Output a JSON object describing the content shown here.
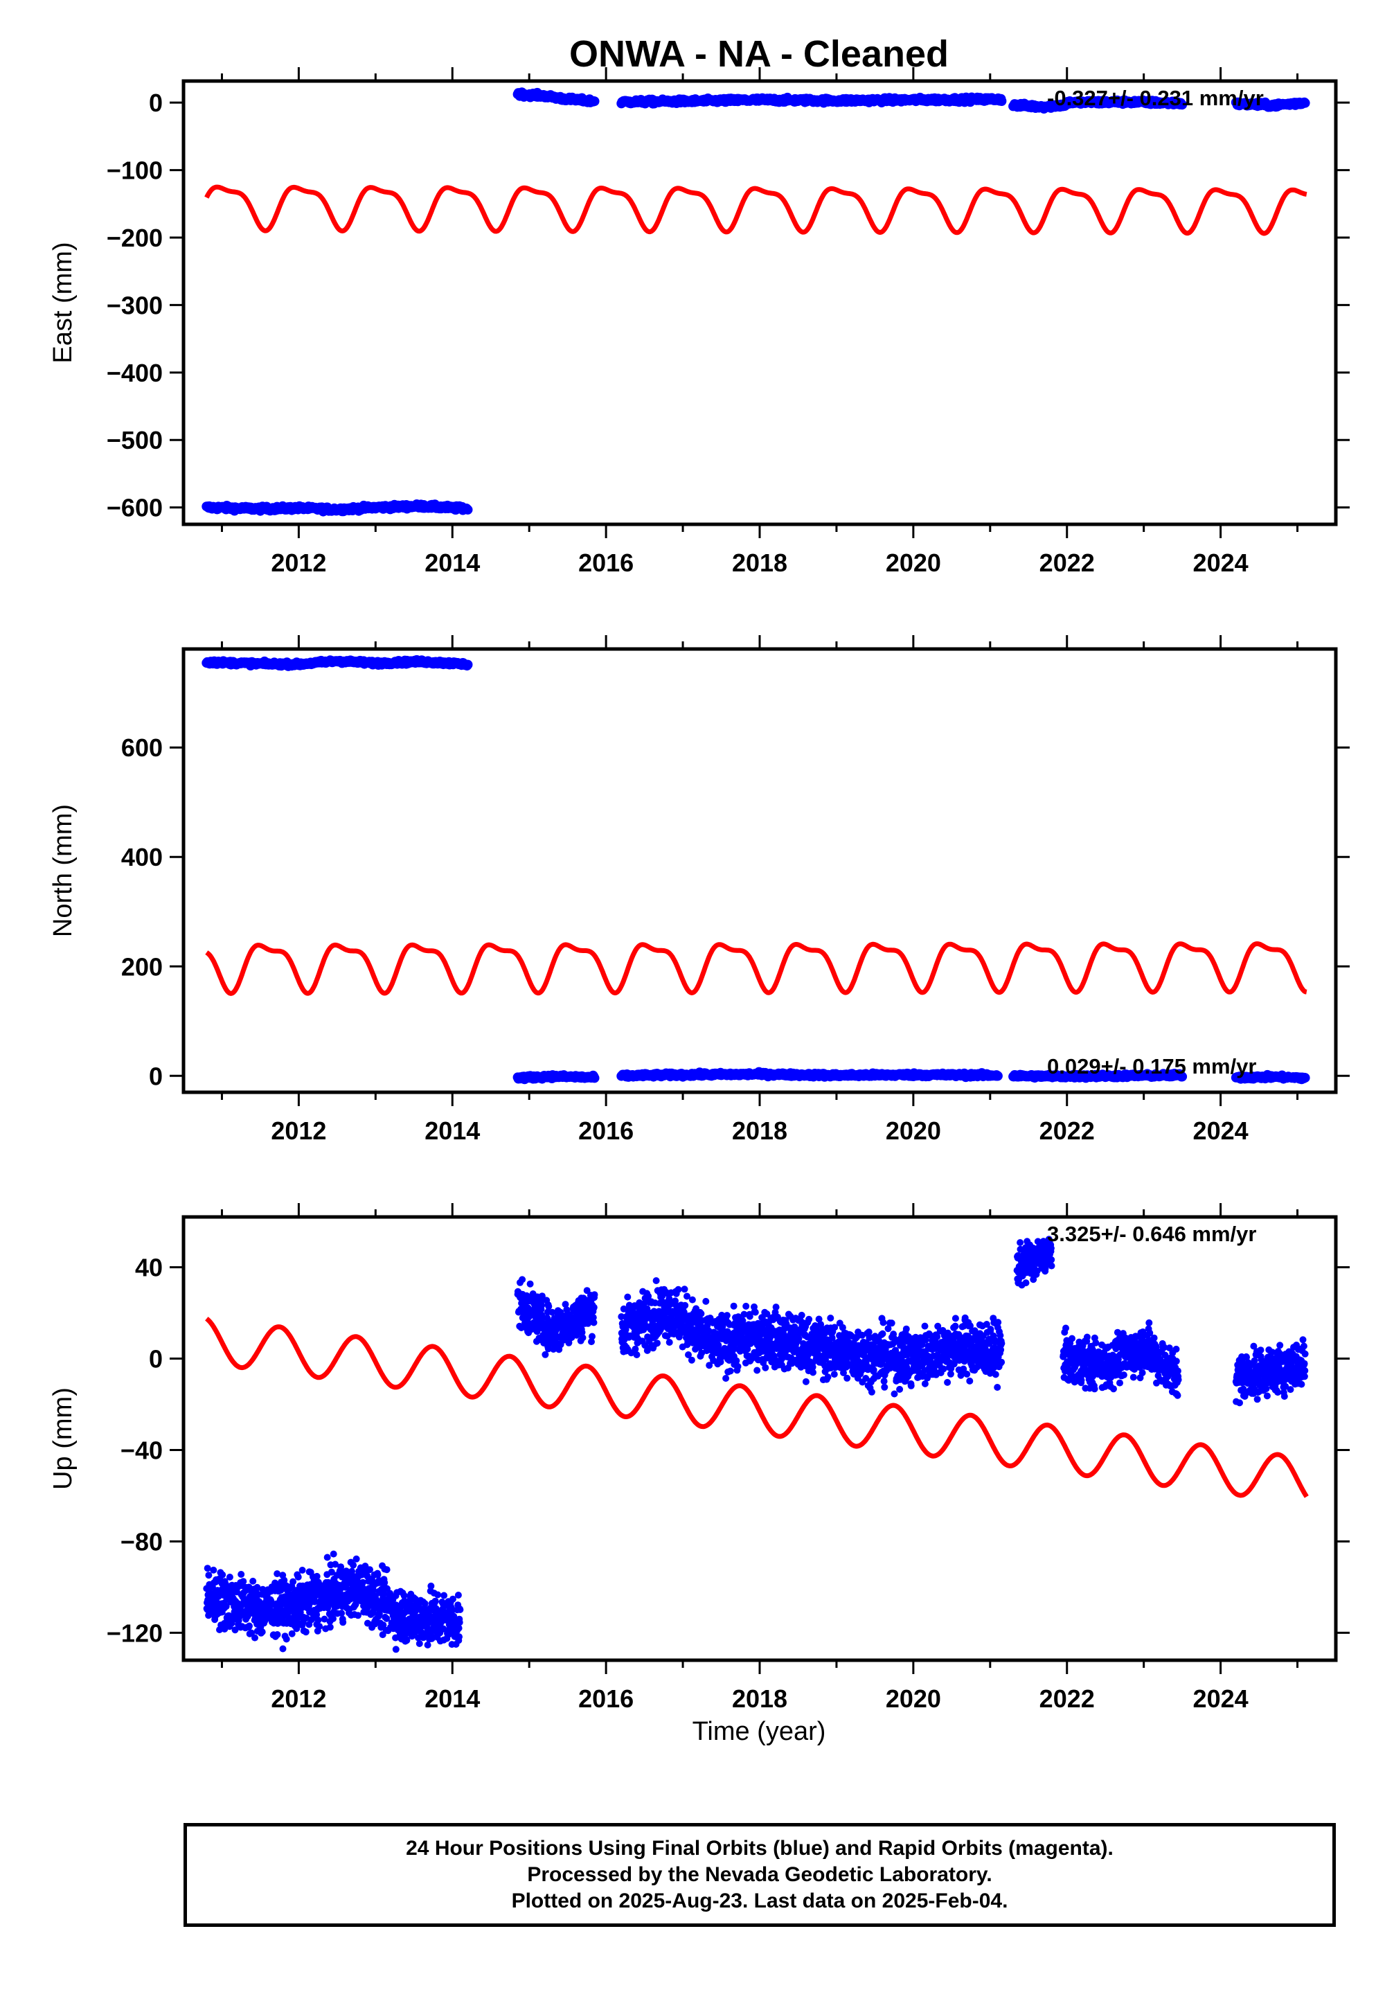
{
  "chart_data": {
    "title": "ONWA  - NA - Cleaned",
    "type": "scatter",
    "colors": {
      "observed": "#0000ff",
      "model": "#ff0000",
      "axes": "#000000"
    },
    "shared_x": {
      "xlabel": "Time (year)",
      "xlim": [
        2010.5,
        2025.5
      ],
      "ticks": [
        "2012",
        "2014",
        "2016",
        "2018",
        "2020",
        "2022",
        "2024"
      ]
    },
    "panels": [
      {
        "ylabel": "East (mm)",
        "ylim": [
          -625,
          32
        ],
        "yticks": [
          "0",
          "-100",
          "-200",
          "-300",
          "-400",
          "-500",
          "-600"
        ],
        "rate_label": "-0.327+/- 0.231 mm/yr",
        "observed_segments": [
          {
            "x": [
              2010.8,
              2011.5,
              2012.0,
              2012.5,
              2013.0,
              2013.6,
              2014.2
            ],
            "y": [
              -600,
              -602,
              -601,
              -603,
              -600,
              -598,
              -602
            ]
          },
          {
            "x": [
              2014.85,
              2015.2,
              2015.5,
              2015.85
            ],
            "y": [
              13,
              10,
              5,
              2
            ]
          },
          {
            "x": [
              2016.2,
              2017.0,
              2018.0,
              2019.0,
              2020.0,
              2021.15
            ],
            "y": [
              1,
              2,
              4,
              3,
              4,
              5
            ]
          },
          {
            "x": [
              2021.3,
              2021.7,
              2022.0
            ],
            "y": [
              -4,
              -6,
              -3
            ]
          },
          {
            "x": [
              2022.0,
              2022.8,
              2023.5
            ],
            "y": [
              0,
              1,
              -1
            ]
          },
          {
            "x": [
              2024.2,
              2024.7,
              2025.1
            ],
            "y": [
              -2,
              -4,
              0
            ]
          }
        ],
        "model": {
          "mean": -150,
          "amplitude": 30,
          "phase": 0.8,
          "harmonic2": 10,
          "trend": -0.3
        }
      },
      {
        "ylabel": "North (mm)",
        "ylim": [
          -30,
          780
        ],
        "yticks": [
          "0",
          "200",
          "400",
          "600"
        ],
        "rate_label": "0.029+/- 0.175 mm/yr",
        "observed_segments": [
          {
            "x": [
              2010.8,
              2011.5,
              2012.0,
              2012.5,
              2013.0,
              2013.6,
              2014.2
            ],
            "y": [
              756,
              753,
              752,
              758,
              754,
              757,
              752
            ]
          },
          {
            "x": [
              2014.85,
              2015.3,
              2015.85
            ],
            "y": [
              -4,
              -1,
              -3
            ]
          },
          {
            "x": [
              2016.2,
              2017.0,
              2018.0,
              2019.0,
              2020.0,
              2021.1
            ],
            "y": [
              0,
              2,
              3,
              1,
              2,
              1
            ]
          },
          {
            "x": [
              2021.3,
              2022.0,
              2023.5
            ],
            "y": [
              0,
              -1,
              1
            ]
          },
          {
            "x": [
              2024.2,
              2024.7,
              2025.1
            ],
            "y": [
              -3,
              -2,
              -4
            ]
          }
        ],
        "model": {
          "mean": 205,
          "amplitude": 40,
          "phase": 0.35,
          "harmonic2": 15,
          "trend": 0.2
        }
      },
      {
        "ylabel": "Up (mm)",
        "ylim": [
          -132,
          62
        ],
        "yticks": [
          "40",
          "0",
          "-40",
          "-80",
          "-120"
        ],
        "rate_label": "3.325+/- 0.646 mm/yr",
        "observed_segments": [
          {
            "x": [
              2010.8,
              2011.5,
              2012.0,
              2012.8,
              2013.3,
              2014.1
            ],
            "y": [
              -104,
              -110,
              -108,
              -100,
              -112,
              -115
            ],
            "noise": 6
          },
          {
            "x": [
              2014.85,
              2015.3,
              2015.85
            ],
            "y": [
              25,
              12,
              22
            ],
            "noise": 5
          },
          {
            "x": [
              2016.2,
              2016.8,
              2017.4,
              2018.0,
              2018.7,
              2019.3,
              2020.0,
              2020.5,
              2021.15
            ],
            "y": [
              12,
              22,
              6,
              10,
              5,
              2,
              0,
              5,
              3
            ],
            "noise": 6
          },
          {
            "x": [
              2021.35,
              2021.8
            ],
            "y": [
              40,
              47
            ],
            "noise": 4
          },
          {
            "x": [
              2021.95,
              2022.5,
              2023.0,
              2023.45
            ],
            "y": [
              0,
              -3,
              5,
              -8
            ],
            "noise": 5
          },
          {
            "x": [
              2024.2,
              2024.7,
              2025.1
            ],
            "y": [
              -8,
              -5,
              -2
            ],
            "noise": 5
          }
        ],
        "model": {
          "mean": 8,
          "amplitude": 10,
          "phase": 0.5,
          "harmonic2": 0,
          "trend": -4.3
        }
      }
    ]
  },
  "footer": {
    "line1": "24 Hour Positions Using Final Orbits (blue) and Rapid Orbits (magenta).",
    "line2": "Processed by the Nevada Geodetic Laboratory.",
    "line3": "Plotted on 2025-Aug-23. Last data on 2025-Feb-04."
  }
}
